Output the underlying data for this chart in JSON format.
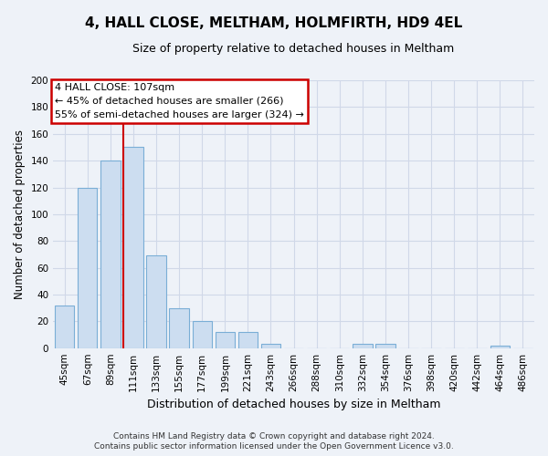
{
  "title": "4, HALL CLOSE, MELTHAM, HOLMFIRTH, HD9 4EL",
  "subtitle": "Size of property relative to detached houses in Meltham",
  "xlabel": "Distribution of detached houses by size in Meltham",
  "ylabel": "Number of detached properties",
  "categories": [
    "45sqm",
    "67sqm",
    "89sqm",
    "111sqm",
    "133sqm",
    "155sqm",
    "177sqm",
    "199sqm",
    "221sqm",
    "243sqm",
    "266sqm",
    "288sqm",
    "310sqm",
    "332sqm",
    "354sqm",
    "376sqm",
    "398sqm",
    "420sqm",
    "442sqm",
    "464sqm",
    "486sqm"
  ],
  "values": [
    32,
    120,
    140,
    150,
    69,
    30,
    20,
    12,
    12,
    3,
    0,
    0,
    0,
    3,
    3,
    0,
    0,
    0,
    0,
    2,
    0
  ],
  "bar_color": "#ccddf0",
  "bar_edge_color": "#7aaed6",
  "marker_line_color": "#cc0000",
  "annotation_line1": "4 HALL CLOSE: 107sqm",
  "annotation_line2": "← 45% of detached houses are smaller (266)",
  "annotation_line3": "55% of semi-detached houses are larger (324) →",
  "annotation_box_color": "#ffffff",
  "annotation_box_edge": "#cc0000",
  "ylim": [
    0,
    200
  ],
  "yticks": [
    0,
    20,
    40,
    60,
    80,
    100,
    120,
    140,
    160,
    180,
    200
  ],
  "footer_line1": "Contains HM Land Registry data © Crown copyright and database right 2024.",
  "footer_line2": "Contains public sector information licensed under the Open Government Licence v3.0.",
  "background_color": "#eef2f8",
  "plot_bg_color": "#eef2f8",
  "grid_color": "#d0d8e8",
  "title_fontsize": 11,
  "subtitle_fontsize": 9,
  "ylabel_fontsize": 8.5,
  "xlabel_fontsize": 9,
  "tick_fontsize": 7.5,
  "footer_fontsize": 6.5
}
